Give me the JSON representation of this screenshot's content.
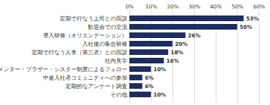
{
  "chart_data": {
    "type": "bar",
    "orientation": "horizontal",
    "categories": [
      "定期で行なう上司との面談",
      "歓迎会での交流",
      "導入研修（オリエンテーション）",
      "入社後の集合研修",
      "定期で行なう人事（第三者）との面談",
      "社内見学",
      "メンター・ブラザー・シスター制度によるフォロー",
      "中途入社者コミュニティへの参加",
      "定期的なアンケート調査",
      "その他"
    ],
    "values": [
      53,
      50,
      26,
      20,
      18,
      16,
      10,
      6,
      6,
      10
    ],
    "value_labels": [
      "53%",
      "50%",
      "26%",
      "20%",
      "18%",
      "16%",
      "10%",
      "6%",
      "6%",
      "10%"
    ],
    "color": "#1f2d5c",
    "xlim": [
      0,
      60
    ],
    "xticks": [
      {
        "value": 0,
        "label": "0%"
      },
      {
        "value": 10,
        "label": "10%"
      },
      {
        "value": 20,
        "label": "20%"
      },
      {
        "value": 30,
        "label": "30%"
      },
      {
        "value": 40,
        "label": "40%"
      },
      {
        "value": 50,
        "label": "50%"
      },
      {
        "value": 60,
        "label": "60%"
      }
    ],
    "grid": true,
    "data_labels": true
  }
}
